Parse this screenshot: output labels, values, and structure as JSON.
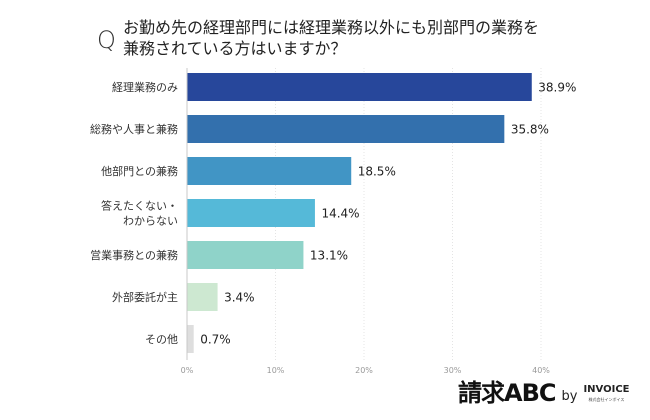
{
  "question": {
    "mark": "Q",
    "text_line1": "お勤め先の経理部門には経理業務以外にも別部門の業務を",
    "text_line2": "兼務されている方はいますか？"
  },
  "chart_data": {
    "type": "bar",
    "orientation": "horizontal",
    "categories": [
      [
        "経理業務のみ"
      ],
      [
        "総務や人事と兼務"
      ],
      [
        "他部門との兼務"
      ],
      [
        "答えたくない・",
        "わからない"
      ],
      [
        "営業事務との兼務"
      ],
      [
        "外部委託が主"
      ],
      [
        "その他"
      ]
    ],
    "values": [
      38.9,
      35.8,
      18.5,
      14.4,
      13.1,
      3.4,
      0.7
    ],
    "value_labels": [
      "38.9%",
      "35.8%",
      "18.5%",
      "14.4%",
      "13.1%",
      "3.4%",
      "0.7%"
    ],
    "colors": [
      "#27479b",
      "#3370ad",
      "#4195c5",
      "#55b9d8",
      "#8fd3c9",
      "#cde8d1",
      "#dedede"
    ],
    "xlim": [
      0,
      40
    ],
    "x_ticks": [
      0,
      10,
      20,
      30,
      40
    ],
    "x_tick_labels": [
      "0%",
      "10%",
      "20%",
      "30%",
      "40%"
    ],
    "grid": "vertical dotted",
    "xlabel": "",
    "ylabel": ""
  },
  "logo": {
    "main": "請求ABC",
    "by": "by",
    "company": "INVOICE",
    "company_sub": "株式会社インボイス"
  }
}
